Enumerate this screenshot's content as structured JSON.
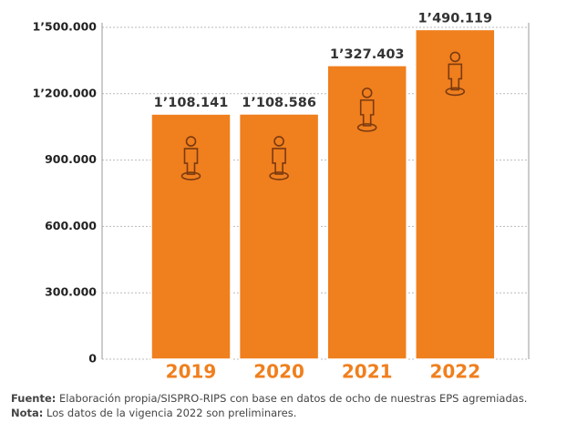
{
  "chart_data": {
    "type": "bar",
    "categories": [
      "2019",
      "2020",
      "2021",
      "2022"
    ],
    "values": [
      1108141,
      1108586,
      1327403,
      1490119
    ],
    "value_labels": [
      "1’108.141",
      "1’108.586",
      "1’327.403",
      "1’490.119"
    ],
    "color": "#f07f1e",
    "ylim": [
      0,
      1500000
    ],
    "yticks": [
      0,
      {
        "value": 300000,
        "label": "300.000"
      },
      {
        "value": 600000,
        "label": "600.000"
      },
      {
        "value": 900000,
        "label": "900.000"
      },
      {
        "value": 1200000,
        "label": "1’200.000"
      },
      {
        "value": 1500000,
        "label": "1’500.000"
      }
    ],
    "grid": true,
    "notes": [
      {
        "label": "Fuente:",
        "text": " Elaboración propia/SISPRO-RIPS con base en datos de ocho de nuestras EPS agremiadas."
      },
      {
        "label": "Nota:",
        "text": " Los datos de la vigencia 2022 son preliminares."
      }
    ]
  }
}
